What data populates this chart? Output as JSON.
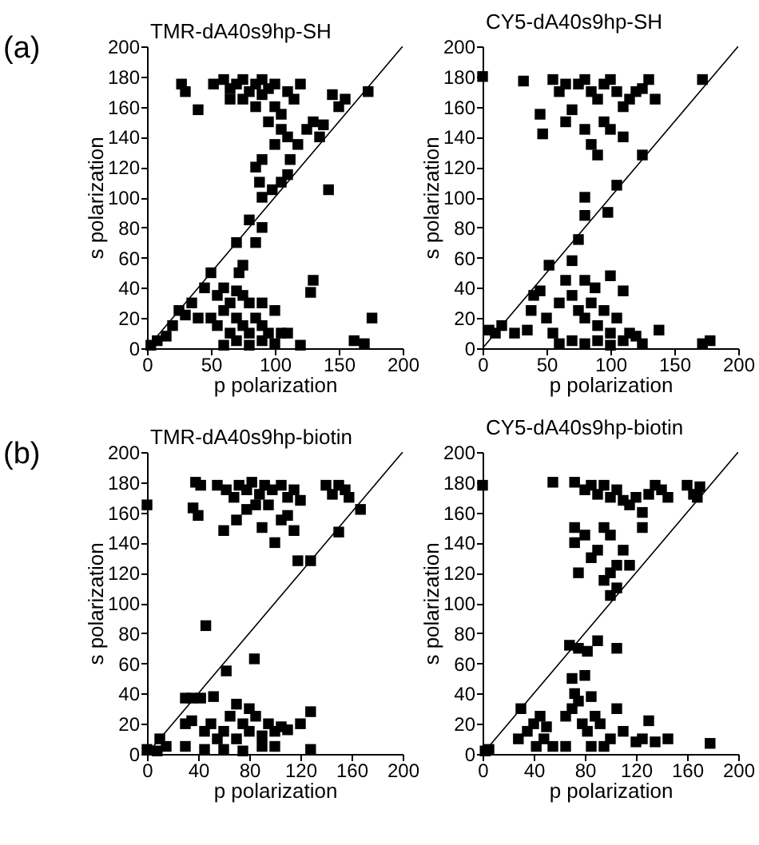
{
  "chart_data": [
    {
      "type": "scatter",
      "title": "TMR-dA40s9hp-SH",
      "xlabel": "p polarization",
      "ylabel": "s polarization",
      "annotations": [
        "(a)"
      ],
      "xlim": [
        0,
        200
      ],
      "ylim": [
        0,
        200
      ],
      "xticks": [
        0,
        50,
        100,
        150,
        200
      ],
      "yticks": [
        0,
        20,
        40,
        60,
        80,
        100,
        120,
        140,
        160,
        180,
        200
      ],
      "series": [
        {
          "type": "scatter",
          "marker": "square",
          "color": "#000000",
          "x": [
            27,
            30,
            40,
            52,
            60,
            65,
            70,
            75,
            80,
            85,
            90,
            95,
            100,
            65,
            75,
            85,
            90,
            100,
            105,
            110,
            115,
            120,
            95,
            105,
            110,
            100,
            118,
            125,
            130,
            138,
            135,
            145,
            150,
            155,
            173,
            112,
            110,
            105,
            98,
            90,
            85,
            88,
            90,
            80,
            90,
            85,
            70,
            75,
            72,
            142,
            130,
            128,
            50,
            45,
            55,
            60,
            65,
            70,
            75,
            80,
            90,
            25,
            30,
            35,
            40,
            50,
            55,
            60,
            65,
            70,
            75,
            80,
            85,
            90,
            95,
            100,
            105,
            110,
            120,
            60,
            70,
            80,
            90,
            100,
            162,
            170,
            176,
            8,
            15,
            3,
            20
          ],
          "values": [
            175,
            170,
            158,
            175,
            178,
            172,
            175,
            178,
            170,
            175,
            178,
            172,
            175,
            165,
            165,
            160,
            168,
            160,
            155,
            170,
            165,
            175,
            150,
            145,
            140,
            135,
            135,
            145,
            150,
            148,
            140,
            168,
            160,
            165,
            170,
            125,
            115,
            110,
            105,
            125,
            120,
            110,
            100,
            85,
            80,
            70,
            70,
            55,
            50,
            105,
            45,
            37,
            50,
            40,
            35,
            40,
            30,
            38,
            35,
            30,
            30,
            25,
            22,
            30,
            20,
            20,
            15,
            25,
            10,
            20,
            15,
            10,
            20,
            15,
            10,
            25,
            10,
            10,
            2,
            2,
            5,
            2,
            5,
            3,
            5,
            3,
            20,
            5,
            8,
            2,
            15
          ]
        },
        {
          "type": "line",
          "color": "#000000",
          "x": [
            0,
            200
          ],
          "values": [
            0,
            200
          ]
        }
      ]
    },
    {
      "type": "scatter",
      "title": "CY5-dA40s9hp-SH",
      "xlabel": "p polarization",
      "ylabel": "s polarization",
      "xlim": [
        0,
        200
      ],
      "ylim": [
        0,
        200
      ],
      "xticks": [
        0,
        50,
        100,
        150,
        200
      ],
      "yticks": [
        0,
        20,
        40,
        60,
        80,
        100,
        120,
        140,
        160,
        180,
        200
      ],
      "series": [
        {
          "type": "scatter",
          "marker": "square",
          "color": "#000000",
          "x": [
            0,
            32,
            45,
            47,
            55,
            60,
            65,
            70,
            75,
            80,
            85,
            90,
            95,
            100,
            105,
            110,
            115,
            120,
            125,
            130,
            135,
            80,
            85,
            90,
            95,
            100,
            110,
            65,
            172,
            125,
            105,
            80,
            80,
            98,
            75,
            52,
            70,
            80,
            100,
            110,
            40,
            38,
            45,
            50,
            55,
            60,
            65,
            70,
            75,
            80,
            85,
            90,
            95,
            100,
            105,
            110,
            115,
            120,
            138,
            70,
            80,
            90,
            100,
            125,
            5,
            10,
            15,
            25,
            35,
            172,
            178,
            60,
            88
          ],
          "values": [
            180,
            177,
            155,
            142,
            178,
            170,
            150,
            158,
            175,
            178,
            170,
            165,
            175,
            178,
            170,
            160,
            165,
            170,
            172,
            178,
            165,
            145,
            135,
            128,
            150,
            145,
            140,
            175,
            178,
            128,
            108,
            100,
            88,
            90,
            72,
            55,
            58,
            45,
            48,
            38,
            35,
            25,
            38,
            20,
            10,
            30,
            45,
            35,
            25,
            20,
            30,
            15,
            25,
            10,
            20,
            5,
            10,
            8,
            12,
            5,
            3,
            5,
            2,
            3,
            12,
            10,
            15,
            10,
            12,
            3,
            5,
            3,
            40
          ]
        },
        {
          "type": "line",
          "color": "#000000",
          "x": [
            0,
            200
          ],
          "values": [
            0,
            200
          ]
        }
      ]
    },
    {
      "type": "scatter",
      "title": "TMR-dA40s9hp-biotin",
      "xlabel": "p polarization",
      "ylabel": "s polarization",
      "annotations": [
        "(b)"
      ],
      "xlim": [
        0,
        200
      ],
      "ylim": [
        0,
        200
      ],
      "xticks": [
        0,
        40,
        80,
        120,
        160,
        200
      ],
      "yticks": [
        0,
        20,
        40,
        60,
        80,
        100,
        120,
        140,
        160,
        180,
        200
      ],
      "series": [
        {
          "type": "scatter",
          "marker": "square",
          "color": "#000000",
          "x": [
            0,
            38,
            42,
            36,
            40,
            55,
            62,
            68,
            72,
            78,
            82,
            88,
            92,
            98,
            105,
            110,
            115,
            120,
            60,
            70,
            78,
            85,
            90,
            95,
            100,
            105,
            110,
            115,
            140,
            145,
            150,
            155,
            158,
            167,
            150,
            118,
            128,
            46,
            62,
            84,
            30,
            35,
            42,
            52,
            30,
            35,
            45,
            50,
            55,
            60,
            65,
            70,
            75,
            80,
            85,
            90,
            95,
            100,
            105,
            110,
            120,
            128,
            70,
            80,
            90,
            100,
            60,
            45,
            30,
            10,
            8,
            0,
            128,
            75,
            15
          ],
          "values": [
            165,
            180,
            178,
            163,
            158,
            178,
            175,
            170,
            178,
            175,
            180,
            172,
            178,
            175,
            178,
            170,
            175,
            168,
            148,
            155,
            162,
            165,
            150,
            165,
            140,
            155,
            158,
            148,
            178,
            172,
            178,
            175,
            170,
            162,
            147,
            128,
            128,
            85,
            55,
            63,
            37,
            37,
            37,
            38,
            20,
            22,
            15,
            20,
            10,
            15,
            25,
            10,
            20,
            15,
            25,
            12,
            20,
            15,
            18,
            16,
            20,
            28,
            33,
            30,
            5,
            5,
            3,
            3,
            5,
            10,
            2,
            3,
            3,
            2,
            5
          ]
        },
        {
          "type": "line",
          "color": "#000000",
          "x": [
            0,
            200
          ],
          "values": [
            0,
            200
          ]
        }
      ]
    },
    {
      "type": "scatter",
      "title": "CY5-dA40s9hp-biotin",
      "xlabel": "p polarization",
      "ylabel": "s polarization",
      "xlim": [
        0,
        200
      ],
      "ylim": [
        0,
        200
      ],
      "xticks": [
        0,
        40,
        80,
        120,
        160,
        200
      ],
      "yticks": [
        0,
        20,
        40,
        60,
        80,
        100,
        120,
        140,
        160,
        180,
        200
      ],
      "series": [
        {
          "type": "scatter",
          "marker": "square",
          "color": "#000000",
          "x": [
            0,
            55,
            72,
            80,
            85,
            90,
            95,
            100,
            105,
            110,
            115,
            120,
            125,
            130,
            135,
            140,
            145,
            160,
            165,
            170,
            168,
            125,
            72,
            72,
            75,
            80,
            85,
            90,
            95,
            100,
            105,
            110,
            115,
            100,
            100,
            105,
            95,
            68,
            75,
            82,
            90,
            105,
            80,
            70,
            72,
            75,
            85,
            105,
            130,
            65,
            70,
            78,
            82,
            88,
            92,
            100,
            110,
            120,
            125,
            135,
            145,
            178,
            30,
            28,
            35,
            40,
            45,
            50,
            42,
            55,
            65,
            85,
            95,
            5,
            2,
            48
          ],
          "values": [
            178,
            180,
            180,
            175,
            178,
            172,
            178,
            170,
            175,
            168,
            165,
            170,
            160,
            172,
            178,
            175,
            170,
            178,
            172,
            177,
            170,
            150,
            150,
            140,
            120,
            145,
            130,
            135,
            150,
            145,
            125,
            135,
            125,
            120,
            105,
            110,
            115,
            72,
            70,
            68,
            75,
            70,
            52,
            50,
            40,
            35,
            38,
            30,
            22,
            25,
            30,
            20,
            15,
            25,
            20,
            10,
            15,
            8,
            10,
            8,
            10,
            7,
            30,
            10,
            15,
            20,
            25,
            18,
            5,
            5,
            5,
            5,
            5,
            3,
            2,
            10
          ]
        },
        {
          "type": "line",
          "color": "#000000",
          "x": [
            0,
            200
          ],
          "values": [
            0,
            200
          ]
        }
      ]
    }
  ]
}
